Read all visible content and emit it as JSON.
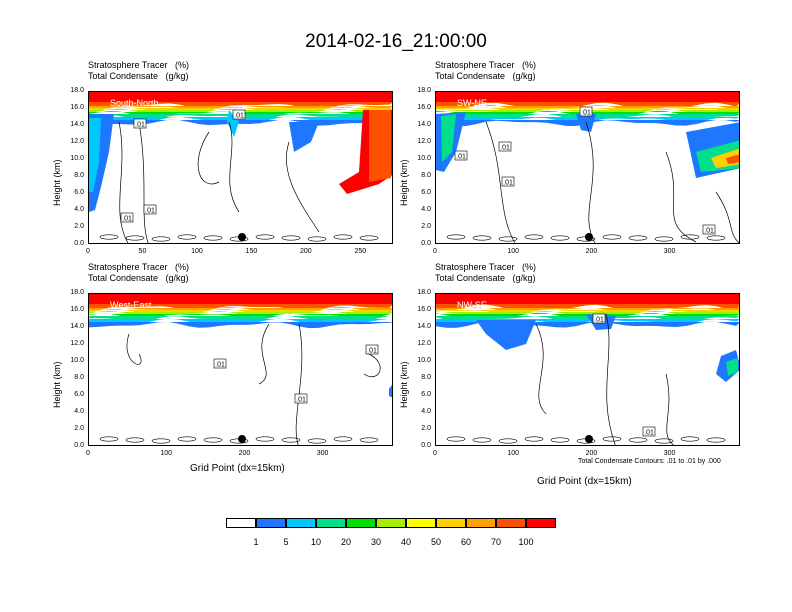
{
  "title": "2014-02-16_21:00:00",
  "footnote": "Total Condensate Contours: .01 to .01 by .000",
  "chart_data": [
    {
      "type": "heatmap",
      "name": "South-North",
      "title_line1": "Stratosphere Tracer   (%)",
      "title_line2": "Total Condensate   (g/kg)",
      "ylabel": "Height (km)",
      "xlabel": "",
      "xlim": [
        0,
        280
      ],
      "ylim": [
        0,
        18
      ],
      "xticks": [
        "0",
        "50",
        "100",
        "150",
        "200",
        "250"
      ],
      "yticks": [
        "0.0",
        "2.0",
        "4.0",
        "6.0",
        "8.0",
        "10.0",
        "12.0",
        "14.0",
        "16.0",
        "18.0"
      ],
      "contour_labels": [
        ".01",
        ".01",
        ".01",
        ".01"
      ]
    },
    {
      "type": "heatmap",
      "name": "SW-NE",
      "title_line1": "Stratosphere Tracer   (%)",
      "title_line2": "Total Condensate   (g/kg)",
      "ylabel": "Height (km)",
      "xlabel": "",
      "xlim": [
        0,
        390
      ],
      "ylim": [
        0,
        18
      ],
      "xticks": [
        "0",
        "100",
        "200",
        "300"
      ],
      "yticks": [
        "0.0",
        "2.0",
        "4.0",
        "6.0",
        "8.0",
        "10.0",
        "12.0",
        "14.0",
        "16.0",
        "18.0"
      ],
      "contour_labels": [
        ".01",
        ".01",
        ".01",
        ".01",
        ".01"
      ]
    },
    {
      "type": "heatmap",
      "name": "West-East",
      "title_line1": "Stratosphere Tracer   (%)",
      "title_line2": "Total Condensate   (g/kg)",
      "ylabel": "Height (km)",
      "xlabel": "Grid Point (dx=15km)",
      "xlim": [
        0,
        390
      ],
      "ylim": [
        0,
        18
      ],
      "xticks": [
        "0",
        "100",
        "200",
        "300"
      ],
      "yticks": [
        "0.0",
        "2.0",
        "4.0",
        "6.0",
        "8.0",
        "10.0",
        "12.0",
        "14.0",
        "16.0",
        "18.0"
      ],
      "contour_labels": [
        ".01",
        ".01",
        ".01"
      ]
    },
    {
      "type": "heatmap",
      "name": "NW-SE",
      "title_line1": "Stratosphere Tracer   (%)",
      "title_line2": "Total Condensate   (g/kg)",
      "ylabel": "Height (km)",
      "xlabel": "Grid Point (dx=15km)",
      "xlim": [
        0,
        390
      ],
      "ylim": [
        0,
        18
      ],
      "xticks": [
        "0",
        "100",
        "200",
        "300"
      ],
      "yticks": [
        "0.0",
        "2.0",
        "4.0",
        "6.0",
        "8.0",
        "10.0",
        "12.0",
        "14.0",
        "16.0",
        "18.0"
      ],
      "contour_labels": [
        ".01",
        ".01"
      ]
    }
  ],
  "legend": {
    "colors": [
      "#ffffff",
      "#1e78ff",
      "#00c8ff",
      "#00e08c",
      "#00e000",
      "#a0f000",
      "#ffff00",
      "#ffd000",
      "#ffa000",
      "#ff5000",
      "#ff0000"
    ],
    "labels": [
      "1",
      "5",
      "10",
      "20",
      "30",
      "40",
      "50",
      "60",
      "70",
      "100"
    ]
  }
}
